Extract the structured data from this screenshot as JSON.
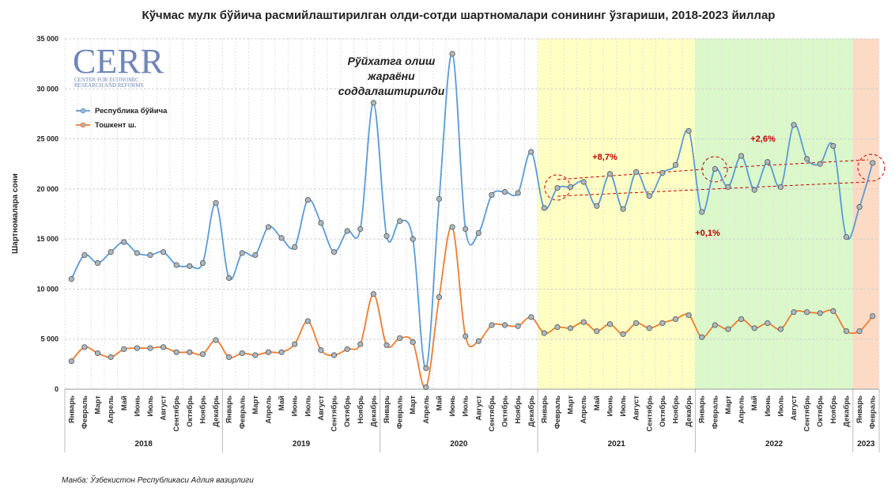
{
  "chart_data": {
    "type": "line",
    "title": "Кўчмас мулк бўйича расмийлаштирилган олди-сотди шартномалари сонининг ўзгариши, 2018-2023 йиллар",
    "ylabel": "Шартномалара сони",
    "source": "Манба: Ўзбекистон Республикаси Адлия вазирлиги",
    "logo": {
      "name": "CERR",
      "subtitle": [
        "CENTER FOR ECONOMIC",
        "RESEARCH AND REFORMS"
      ]
    },
    "groups": [
      {
        "year": "2018",
        "months": [
          "Январь",
          "Февраль",
          "Март",
          "Апрель",
          "Май",
          "Июнь",
          "Июль",
          "Август",
          "Сентябрь",
          "Октябрь",
          "Ноябрь",
          "Декабрь"
        ]
      },
      {
        "year": "2019",
        "months": [
          "Январь",
          "Февраль",
          "Март",
          "Апрель",
          "Май",
          "Июнь",
          "Июль",
          "Август",
          "Сентябрь",
          "Октябрь",
          "Ноябрь",
          "Декабрь"
        ]
      },
      {
        "year": "2020",
        "months": [
          "Январь",
          "Февраль",
          "Март",
          "Апрель",
          "Май",
          "Июнь",
          "Июль",
          "Август",
          "Сентябрь",
          "Октябрь",
          "Ноябрь",
          "Декабрь"
        ]
      },
      {
        "year": "2021",
        "background": "#ffffb8",
        "months": [
          "Январь",
          "Февраль",
          "Март",
          "Апрель",
          "Май",
          "Июнь",
          "Июль",
          "Август",
          "Сентябрь",
          "Октябрь",
          "Ноябрь",
          "Декабрь"
        ]
      },
      {
        "year": "2022",
        "background": "#d4f7c0",
        "months": [
          "Январь",
          "Февраль",
          "Март",
          "Апрель",
          "Май",
          "Июнь",
          "Июль",
          "Август",
          "Сентябрь",
          "Октябрь",
          "Ноябрь",
          "Декабрь"
        ]
      },
      {
        "year": "2023",
        "background": "#fbd3b8",
        "months": [
          "Январь",
          "Февраль"
        ]
      }
    ],
    "series": [
      {
        "name": "Республика бўйича",
        "color": "#5b9bd5",
        "values": [
          11000,
          13400,
          12600,
          13700,
          14700,
          13600,
          13400,
          13700,
          12400,
          12300,
          12600,
          18600,
          11100,
          13600,
          13400,
          16200,
          15100,
          14200,
          18900,
          16600,
          13700,
          15800,
          16000,
          28600,
          15300,
          16800,
          15000,
          2100,
          19000,
          33500,
          16000,
          15600,
          19400,
          19700,
          19600,
          23700,
          18100,
          20100,
          20200,
          20700,
          18300,
          21500,
          18000,
          21700,
          19300,
          21600,
          22400,
          25800,
          17700,
          22000,
          20200,
          23300,
          19900,
          22700,
          20200,
          26400,
          23000,
          22500,
          24300,
          15200,
          18200,
          22600
        ]
      },
      {
        "name": "Тошкент ш.",
        "color": "#ed7d31",
        "values": [
          2800,
          4200,
          3600,
          3200,
          4000,
          4100,
          4100,
          4200,
          3700,
          3700,
          3500,
          4900,
          3200,
          3600,
          3400,
          3700,
          3700,
          4500,
          6800,
          3900,
          3400,
          4000,
          4500,
          9500,
          4400,
          5100,
          4700,
          200,
          9200,
          16200,
          5300,
          4800,
          6400,
          6400,
          6300,
          7200,
          5600,
          6200,
          6100,
          6700,
          5800,
          6500,
          5500,
          6600,
          6100,
          6600,
          7000,
          7400,
          5200,
          6400,
          6000,
          7000,
          6100,
          6600,
          6000,
          7700,
          7700,
          7600,
          7800,
          5800,
          5800,
          7300
        ]
      }
    ],
    "ylim": [
      0,
      35000
    ],
    "yticks": [
      0,
      {
        "value": 5000,
        "label": "5 000"
      },
      {
        "value": 10000,
        "label": "10 000"
      },
      {
        "value": 15000,
        "label": "15 000"
      },
      {
        "value": 20000,
        "label": "20 000"
      },
      {
        "value": 25000,
        "label": "25 000"
      },
      {
        "value": 30000,
        "label": "30 000"
      },
      {
        "value": 35000,
        "label": "35 000"
      }
    ],
    "grid": true,
    "legend": "top-left",
    "annotations": {
      "note": [
        "Рўйхатга олиш",
        "жараёни",
        "соддалаштирилди"
      ],
      "growth_2021": "+8,7%",
      "growth_2022": "+2,6%",
      "growth_feb": "+0,1%"
    }
  }
}
